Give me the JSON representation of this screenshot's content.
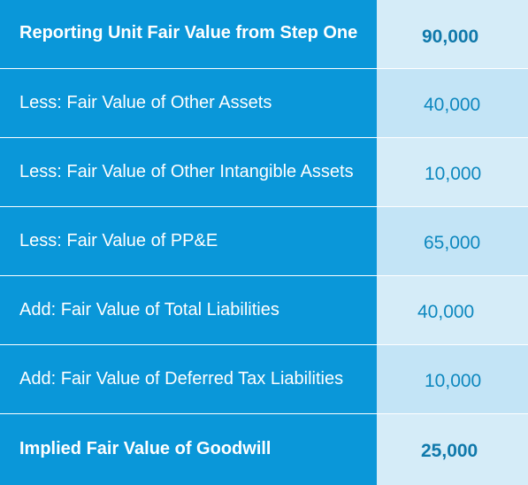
{
  "rows": [
    {
      "label": "Reporting Unit Fair Value from Step One",
      "value": "90,000"
    },
    {
      "label": "Less: Fair Value of Other Assets",
      "value": "40,000"
    },
    {
      "label": "Less: Fair Value of Other Intangible Assets",
      "value": "10,000"
    },
    {
      "label": "Less: Fair Value of PP&E",
      "value": "65,000"
    },
    {
      "label": "Add: Fair Value of Total Liabilities",
      "value": "40,000"
    },
    {
      "label": "Add: Fair Value of Deferred Tax Liabilities",
      "value": "10,000"
    },
    {
      "label": "Implied Fair Value of Goodwill",
      "value": "25,000"
    }
  ],
  "colors": {
    "label_bg": "#0a97d9",
    "label_text": "#ffffff",
    "value_bg_light": "#d5ecf8",
    "value_bg_lighter": "#c3e4f6",
    "value_text": "#0e88bf"
  }
}
